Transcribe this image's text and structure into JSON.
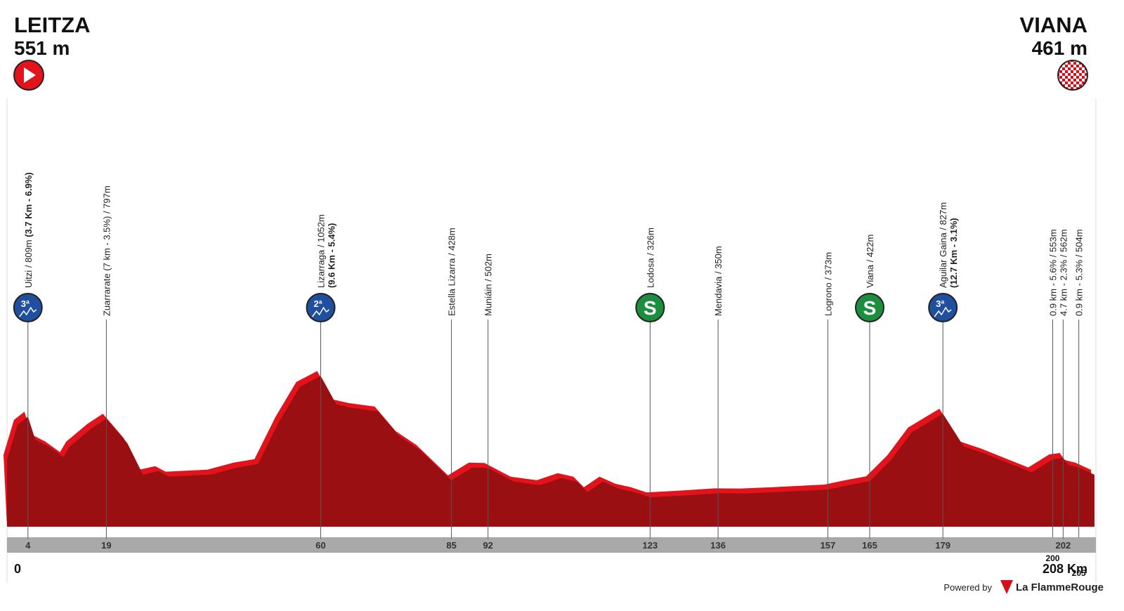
{
  "chart_data": {
    "type": "area",
    "start": {
      "name": "LEITZA",
      "elevation": "551 m"
    },
    "finish": {
      "name": "VIANA",
      "elevation": "461 m"
    },
    "x": [
      0,
      2,
      4,
      5.4,
      8,
      10.8,
      12,
      16,
      19,
      23,
      26,
      29,
      31,
      39,
      44,
      48,
      52,
      56,
      60,
      63,
      66,
      71,
      75,
      79,
      85,
      89,
      92,
      97,
      102,
      106,
      109,
      111,
      114,
      117,
      120,
      123,
      129,
      136,
      141,
      147,
      152,
      157,
      161,
      165,
      169,
      173,
      179,
      183,
      187,
      192,
      196,
      200,
      202,
      203,
      205,
      208
    ],
    "values": [
      551,
      760,
      809,
      672,
      630,
      567,
      630,
      735,
      797,
      651,
      462,
      483,
      450,
      462,
      504,
      525,
      777,
      987,
      1052,
      882,
      861,
      840,
      693,
      609,
      428,
      504,
      502,
      420,
      399,
      441,
      420,
      357,
      420,
      378,
      357,
      326,
      336,
      350,
      349,
      357,
      365,
      373,
      399,
      422,
      546,
      714,
      827,
      630,
      588,
      525,
      475,
      553,
      562,
      520,
      504,
      461
    ],
    "color": "#9a0f12",
    "highlight_color": "#e3131c",
    "ylim": [
      150,
      1100
    ],
    "xlim": [
      0,
      208
    ],
    "annotations": [
      {
        "km": 4,
        "lines": [
          [
            {
              "text": "Uitzi / 809m ",
              "bold": false
            },
            {
              "text": "(3.7 Km - 6.9%)",
              "bold": true
            }
          ]
        ],
        "icon": {
          "label": "3ª",
          "color": "#1f4f9e",
          "mountain": true
        }
      },
      {
        "km": 19,
        "lines": [
          [
            {
              "text": "Zuarrarate (7 km - 3.5%) / 797m",
              "bold": false
            }
          ]
        ]
      },
      {
        "km": 60,
        "lines": [
          [
            {
              "text": "Lizarraga / 1052m",
              "bold": false
            }
          ],
          [
            {
              "text": "(9.6 Km - 5.4%)",
              "bold": true
            }
          ]
        ],
        "icon": {
          "label": "2ª",
          "color": "#1f4f9e",
          "mountain": true
        }
      },
      {
        "km": 85,
        "lines": [
          [
            {
              "text": "Estella Lizarra / 428m",
              "bold": false
            }
          ]
        ]
      },
      {
        "km": 92,
        "lines": [
          [
            {
              "text": "Muniáin / 502m",
              "bold": false
            }
          ]
        ]
      },
      {
        "km": 123,
        "lines": [
          [
            {
              "text": "Lodosa / 326m",
              "bold": false
            }
          ]
        ],
        "icon": {
          "label": "S",
          "color": "#1b8f3f",
          "mountain": false
        }
      },
      {
        "km": 136,
        "lines": [
          [
            {
              "text": "Mendavia / 350m",
              "bold": false
            }
          ]
        ]
      },
      {
        "km": 157,
        "lines": [
          [
            {
              "text": "Logrono / 373m",
              "bold": false
            }
          ]
        ]
      },
      {
        "km": 165,
        "lines": [
          [
            {
              "text": "Viana / 422m",
              "bold": false
            }
          ]
        ],
        "icon": {
          "label": "S",
          "color": "#1b8f3f",
          "mountain": false
        }
      },
      {
        "km": 179,
        "lines": [
          [
            {
              "text": "Aguilar Gaina / 827m",
              "bold": false
            }
          ],
          [
            {
              "text": "(12.7 Km - 3.1%)",
              "bold": true
            }
          ]
        ],
        "icon": {
          "label": "3ª",
          "color": "#1f4f9e",
          "mountain": true
        }
      },
      {
        "km": 200,
        "lines": [
          [
            {
              "text": "0.9 km - 5.6% / 553m",
              "bold": false
            }
          ]
        ]
      },
      {
        "km": 202,
        "lines": [
          [
            {
              "text": "4.7 km - 2.3% / 562m",
              "bold": false
            }
          ]
        ]
      },
      {
        "km": 205,
        "lines": [
          [
            {
              "text": "0.9 km - 5.3% / 504m",
              "bold": false
            }
          ]
        ]
      }
    ],
    "xticks": [
      4,
      19,
      60,
      85,
      92,
      123,
      136,
      157,
      165,
      179,
      202
    ],
    "xticks_below": [
      0,
      200,
      {
        "value": 208,
        "label": "208 Km"
      },
      205
    ]
  },
  "footer": {
    "powered": "Powered by",
    "brand": "La FlammeRouge"
  }
}
